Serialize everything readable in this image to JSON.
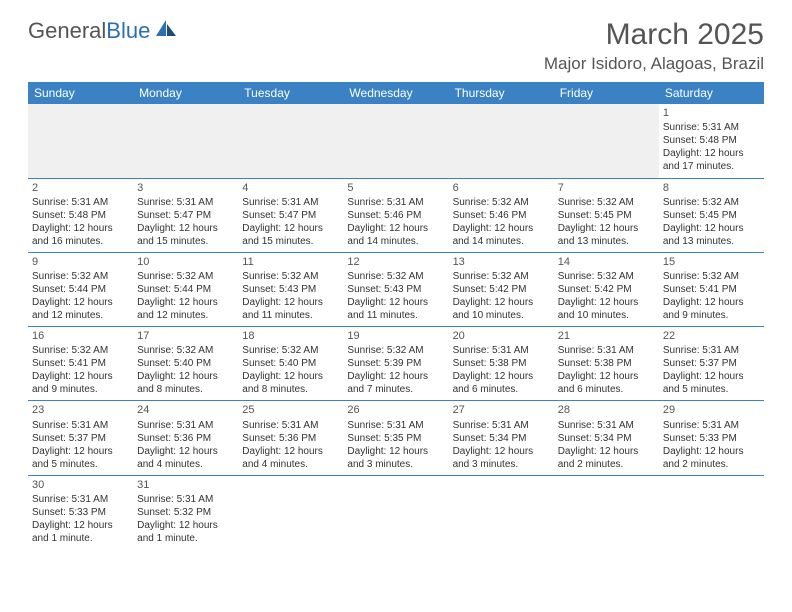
{
  "logo": {
    "text1": "General",
    "text2": "Blue"
  },
  "header": {
    "month": "March 2025",
    "location": "Major Isidoro, Alagoas, Brazil"
  },
  "days": [
    "Sunday",
    "Monday",
    "Tuesday",
    "Wednesday",
    "Thursday",
    "Friday",
    "Saturday"
  ],
  "colors": {
    "header_bg": "#3b82c4",
    "header_text": "#ffffff",
    "border": "#3b82c4",
    "empty_bg": "#f0f0f0",
    "text": "#333333",
    "title": "#555555"
  },
  "weeks": [
    [
      null,
      null,
      null,
      null,
      null,
      null,
      {
        "num": "1",
        "sunrise": "Sunrise: 5:31 AM",
        "sunset": "Sunset: 5:48 PM",
        "daylight1": "Daylight: 12 hours",
        "daylight2": "and 17 minutes."
      }
    ],
    [
      {
        "num": "2",
        "sunrise": "Sunrise: 5:31 AM",
        "sunset": "Sunset: 5:48 PM",
        "daylight1": "Daylight: 12 hours",
        "daylight2": "and 16 minutes."
      },
      {
        "num": "3",
        "sunrise": "Sunrise: 5:31 AM",
        "sunset": "Sunset: 5:47 PM",
        "daylight1": "Daylight: 12 hours",
        "daylight2": "and 15 minutes."
      },
      {
        "num": "4",
        "sunrise": "Sunrise: 5:31 AM",
        "sunset": "Sunset: 5:47 PM",
        "daylight1": "Daylight: 12 hours",
        "daylight2": "and 15 minutes."
      },
      {
        "num": "5",
        "sunrise": "Sunrise: 5:31 AM",
        "sunset": "Sunset: 5:46 PM",
        "daylight1": "Daylight: 12 hours",
        "daylight2": "and 14 minutes."
      },
      {
        "num": "6",
        "sunrise": "Sunrise: 5:32 AM",
        "sunset": "Sunset: 5:46 PM",
        "daylight1": "Daylight: 12 hours",
        "daylight2": "and 14 minutes."
      },
      {
        "num": "7",
        "sunrise": "Sunrise: 5:32 AM",
        "sunset": "Sunset: 5:45 PM",
        "daylight1": "Daylight: 12 hours",
        "daylight2": "and 13 minutes."
      },
      {
        "num": "8",
        "sunrise": "Sunrise: 5:32 AM",
        "sunset": "Sunset: 5:45 PM",
        "daylight1": "Daylight: 12 hours",
        "daylight2": "and 13 minutes."
      }
    ],
    [
      {
        "num": "9",
        "sunrise": "Sunrise: 5:32 AM",
        "sunset": "Sunset: 5:44 PM",
        "daylight1": "Daylight: 12 hours",
        "daylight2": "and 12 minutes."
      },
      {
        "num": "10",
        "sunrise": "Sunrise: 5:32 AM",
        "sunset": "Sunset: 5:44 PM",
        "daylight1": "Daylight: 12 hours",
        "daylight2": "and 12 minutes."
      },
      {
        "num": "11",
        "sunrise": "Sunrise: 5:32 AM",
        "sunset": "Sunset: 5:43 PM",
        "daylight1": "Daylight: 12 hours",
        "daylight2": "and 11 minutes."
      },
      {
        "num": "12",
        "sunrise": "Sunrise: 5:32 AM",
        "sunset": "Sunset: 5:43 PM",
        "daylight1": "Daylight: 12 hours",
        "daylight2": "and 11 minutes."
      },
      {
        "num": "13",
        "sunrise": "Sunrise: 5:32 AM",
        "sunset": "Sunset: 5:42 PM",
        "daylight1": "Daylight: 12 hours",
        "daylight2": "and 10 minutes."
      },
      {
        "num": "14",
        "sunrise": "Sunrise: 5:32 AM",
        "sunset": "Sunset: 5:42 PM",
        "daylight1": "Daylight: 12 hours",
        "daylight2": "and 10 minutes."
      },
      {
        "num": "15",
        "sunrise": "Sunrise: 5:32 AM",
        "sunset": "Sunset: 5:41 PM",
        "daylight1": "Daylight: 12 hours",
        "daylight2": "and 9 minutes."
      }
    ],
    [
      {
        "num": "16",
        "sunrise": "Sunrise: 5:32 AM",
        "sunset": "Sunset: 5:41 PM",
        "daylight1": "Daylight: 12 hours",
        "daylight2": "and 9 minutes."
      },
      {
        "num": "17",
        "sunrise": "Sunrise: 5:32 AM",
        "sunset": "Sunset: 5:40 PM",
        "daylight1": "Daylight: 12 hours",
        "daylight2": "and 8 minutes."
      },
      {
        "num": "18",
        "sunrise": "Sunrise: 5:32 AM",
        "sunset": "Sunset: 5:40 PM",
        "daylight1": "Daylight: 12 hours",
        "daylight2": "and 8 minutes."
      },
      {
        "num": "19",
        "sunrise": "Sunrise: 5:32 AM",
        "sunset": "Sunset: 5:39 PM",
        "daylight1": "Daylight: 12 hours",
        "daylight2": "and 7 minutes."
      },
      {
        "num": "20",
        "sunrise": "Sunrise: 5:31 AM",
        "sunset": "Sunset: 5:38 PM",
        "daylight1": "Daylight: 12 hours",
        "daylight2": "and 6 minutes."
      },
      {
        "num": "21",
        "sunrise": "Sunrise: 5:31 AM",
        "sunset": "Sunset: 5:38 PM",
        "daylight1": "Daylight: 12 hours",
        "daylight2": "and 6 minutes."
      },
      {
        "num": "22",
        "sunrise": "Sunrise: 5:31 AM",
        "sunset": "Sunset: 5:37 PM",
        "daylight1": "Daylight: 12 hours",
        "daylight2": "and 5 minutes."
      }
    ],
    [
      {
        "num": "23",
        "sunrise": "Sunrise: 5:31 AM",
        "sunset": "Sunset: 5:37 PM",
        "daylight1": "Daylight: 12 hours",
        "daylight2": "and 5 minutes."
      },
      {
        "num": "24",
        "sunrise": "Sunrise: 5:31 AM",
        "sunset": "Sunset: 5:36 PM",
        "daylight1": "Daylight: 12 hours",
        "daylight2": "and 4 minutes."
      },
      {
        "num": "25",
        "sunrise": "Sunrise: 5:31 AM",
        "sunset": "Sunset: 5:36 PM",
        "daylight1": "Daylight: 12 hours",
        "daylight2": "and 4 minutes."
      },
      {
        "num": "26",
        "sunrise": "Sunrise: 5:31 AM",
        "sunset": "Sunset: 5:35 PM",
        "daylight1": "Daylight: 12 hours",
        "daylight2": "and 3 minutes."
      },
      {
        "num": "27",
        "sunrise": "Sunrise: 5:31 AM",
        "sunset": "Sunset: 5:34 PM",
        "daylight1": "Daylight: 12 hours",
        "daylight2": "and 3 minutes."
      },
      {
        "num": "28",
        "sunrise": "Sunrise: 5:31 AM",
        "sunset": "Sunset: 5:34 PM",
        "daylight1": "Daylight: 12 hours",
        "daylight2": "and 2 minutes."
      },
      {
        "num": "29",
        "sunrise": "Sunrise: 5:31 AM",
        "sunset": "Sunset: 5:33 PM",
        "daylight1": "Daylight: 12 hours",
        "daylight2": "and 2 minutes."
      }
    ],
    [
      {
        "num": "30",
        "sunrise": "Sunrise: 5:31 AM",
        "sunset": "Sunset: 5:33 PM",
        "daylight1": "Daylight: 12 hours",
        "daylight2": "and 1 minute."
      },
      {
        "num": "31",
        "sunrise": "Sunrise: 5:31 AM",
        "sunset": "Sunset: 5:32 PM",
        "daylight1": "Daylight: 12 hours",
        "daylight2": "and 1 minute."
      },
      null,
      null,
      null,
      null,
      null
    ]
  ]
}
